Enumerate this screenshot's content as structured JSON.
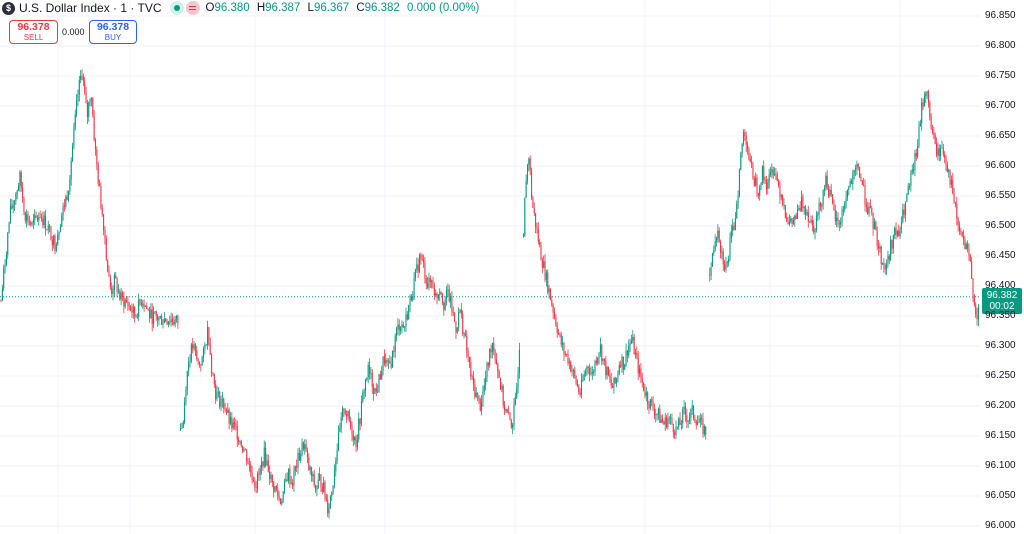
{
  "header": {
    "symbol_icon": "$",
    "symbol_title": "U.S. Dollar Index · 1 · TVC",
    "ohlc": {
      "o_label": "O",
      "o_value": "96.380",
      "h_label": "H",
      "h_value": "96.387",
      "l_label": "L",
      "l_value": "96.367",
      "c_label": "C",
      "c_value": "96.382",
      "change": "0.000 (0.00%)"
    }
  },
  "trade": {
    "sell_price": "96.378",
    "sell_label": "SELL",
    "spread": "0.000",
    "buy_price": "96.378",
    "buy_label": "BUY"
  },
  "last_price": {
    "value": "96.382",
    "countdown": "00:02",
    "number": 96.382
  },
  "colors": {
    "up": "#089981",
    "down": "#f23645",
    "grid": "#f0f3fa",
    "price_line": "#089981"
  },
  "chart_data": {
    "type": "candlestick",
    "y_ticks": [
      "96.850",
      "96.800",
      "96.750",
      "96.700",
      "96.650",
      "96.600",
      "96.550",
      "96.500",
      "96.450",
      "96.400",
      "96.350",
      "96.300",
      "96.250",
      "96.200",
      "96.150",
      "96.100",
      "96.050",
      "96.000"
    ],
    "ylim": [
      96.0,
      96.86
    ],
    "grid": true,
    "price_path": [
      [
        0,
        96.36
      ],
      [
        5,
        96.44
      ],
      [
        10,
        96.52
      ],
      [
        15,
        96.55
      ],
      [
        20,
        96.58
      ],
      [
        25,
        96.52
      ],
      [
        32,
        96.5
      ],
      [
        40,
        96.52
      ],
      [
        47,
        96.5
      ],
      [
        55,
        96.47
      ],
      [
        62,
        96.52
      ],
      [
        68,
        96.56
      ],
      [
        73,
        96.64
      ],
      [
        78,
        96.72
      ],
      [
        82,
        96.76
      ],
      [
        87,
        96.68
      ],
      [
        91,
        96.73
      ],
      [
        95,
        96.63
      ],
      [
        100,
        96.55
      ],
      [
        104,
        96.5
      ],
      [
        108,
        96.42
      ],
      [
        111,
        96.39
      ],
      [
        115,
        96.41
      ],
      [
        120,
        96.38
      ],
      [
        128,
        96.37
      ],
      [
        135,
        96.35
      ],
      [
        142,
        96.38
      ],
      [
        150,
        96.35
      ],
      [
        160,
        96.345
      ],
      [
        170,
        96.345
      ],
      [
        178,
        96.34
      ],
      [
        180,
        96.155
      ],
      [
        183,
        96.17
      ],
      [
        186,
        96.24
      ],
      [
        189,
        96.28
      ],
      [
        193,
        96.3
      ],
      [
        198,
        96.27
      ],
      [
        203,
        96.28
      ],
      [
        208,
        96.33
      ],
      [
        212,
        96.26
      ],
      [
        216,
        96.22
      ],
      [
        220,
        96.21
      ],
      [
        225,
        96.2
      ],
      [
        230,
        96.17
      ],
      [
        236,
        96.16
      ],
      [
        241,
        96.14
      ],
      [
        246,
        96.12
      ],
      [
        251,
        96.09
      ],
      [
        256,
        96.07
      ],
      [
        260,
        96.09
      ],
      [
        264,
        96.12
      ],
      [
        268,
        96.1
      ],
      [
        272,
        96.07
      ],
      [
        276,
        96.06
      ],
      [
        280,
        96.04
      ],
      [
        284,
        96.06
      ],
      [
        288,
        96.09
      ],
      [
        292,
        96.07
      ],
      [
        296,
        96.1
      ],
      [
        300,
        96.12
      ],
      [
        304,
        96.14
      ],
      [
        308,
        96.1
      ],
      [
        312,
        96.08
      ],
      [
        316,
        96.06
      ],
      [
        320,
        96.08
      ],
      [
        324,
        96.06
      ],
      [
        328,
        96.03
      ],
      [
        332,
        96.06
      ],
      [
        336,
        96.12
      ],
      [
        340,
        96.16
      ],
      [
        344,
        96.2
      ],
      [
        348,
        96.18
      ],
      [
        352,
        96.16
      ],
      [
        356,
        96.14
      ],
      [
        360,
        96.18
      ],
      [
        364,
        96.23
      ],
      [
        368,
        96.26
      ],
      [
        372,
        96.24
      ],
      [
        376,
        96.22
      ],
      [
        380,
        96.25
      ],
      [
        384,
        96.28
      ],
      [
        388,
        96.26
      ],
      [
        392,
        96.28
      ],
      [
        396,
        96.32
      ],
      [
        400,
        96.34
      ],
      [
        404,
        96.33
      ],
      [
        408,
        96.36
      ],
      [
        412,
        96.39
      ],
      [
        416,
        96.42
      ],
      [
        420,
        96.45
      ],
      [
        424,
        96.43
      ],
      [
        428,
        96.4
      ],
      [
        432,
        96.41
      ],
      [
        436,
        96.38
      ],
      [
        440,
        96.4
      ],
      [
        444,
        96.37
      ],
      [
        448,
        96.39
      ],
      [
        452,
        96.36
      ],
      [
        456,
        96.33
      ],
      [
        460,
        96.36
      ],
      [
        464,
        96.32
      ],
      [
        468,
        96.28
      ],
      [
        472,
        96.24
      ],
      [
        476,
        96.22
      ],
      [
        480,
        96.2
      ],
      [
        484,
        96.23
      ],
      [
        488,
        96.27
      ],
      [
        492,
        96.31
      ],
      [
        496,
        96.28
      ],
      [
        500,
        96.24
      ],
      [
        504,
        96.2
      ],
      [
        508,
        96.18
      ],
      [
        512,
        96.17
      ],
      [
        516,
        96.21
      ],
      [
        520,
        96.32
      ],
      [
        523,
        96.48
      ],
      [
        526,
        96.58
      ],
      [
        529,
        96.62
      ],
      [
        532,
        96.54
      ],
      [
        536,
        96.5
      ],
      [
        540,
        96.46
      ],
      [
        544,
        96.43
      ],
      [
        548,
        96.4
      ],
      [
        552,
        96.37
      ],
      [
        556,
        96.34
      ],
      [
        560,
        96.31
      ],
      [
        564,
        96.29
      ],
      [
        568,
        96.28
      ],
      [
        572,
        96.26
      ],
      [
        576,
        96.24
      ],
      [
        580,
        96.22
      ],
      [
        584,
        96.25
      ],
      [
        588,
        96.27
      ],
      [
        592,
        96.25
      ],
      [
        596,
        96.28
      ],
      [
        600,
        96.3
      ],
      [
        604,
        96.27
      ],
      [
        608,
        96.25
      ],
      [
        612,
        96.23
      ],
      [
        616,
        96.24
      ],
      [
        620,
        96.28
      ],
      [
        624,
        96.27
      ],
      [
        628,
        96.3
      ],
      [
        632,
        96.31
      ],
      [
        636,
        96.28
      ],
      [
        640,
        96.25
      ],
      [
        644,
        96.23
      ],
      [
        648,
        96.21
      ],
      [
        652,
        96.2
      ],
      [
        656,
        96.19
      ],
      [
        660,
        96.18
      ],
      [
        664,
        96.17
      ],
      [
        668,
        96.18
      ],
      [
        672,
        96.17
      ],
      [
        676,
        96.16
      ],
      [
        680,
        96.17
      ],
      [
        684,
        96.19
      ],
      [
        688,
        96.18
      ],
      [
        692,
        96.19
      ],
      [
        696,
        96.18
      ],
      [
        700,
        96.17
      ],
      [
        704,
        96.16
      ],
      [
        707,
        96.155
      ],
      [
        709,
        96.42
      ],
      [
        712,
        96.44
      ],
      [
        715,
        96.48
      ],
      [
        718,
        96.5
      ],
      [
        721,
        96.46
      ],
      [
        724,
        96.44
      ],
      [
        727,
        96.43
      ],
      [
        730,
        96.47
      ],
      [
        734,
        96.5
      ],
      [
        738,
        96.56
      ],
      [
        741,
        96.62
      ],
      [
        744,
        96.66
      ],
      [
        747,
        96.64
      ],
      [
        750,
        96.6
      ],
      [
        754,
        96.58
      ],
      [
        758,
        96.56
      ],
      [
        762,
        96.59
      ],
      [
        766,
        96.57
      ],
      [
        770,
        96.58
      ],
      [
        774,
        96.6
      ],
      [
        778,
        96.57
      ],
      [
        782,
        96.55
      ],
      [
        786,
        96.52
      ],
      [
        790,
        96.5
      ],
      [
        794,
        96.51
      ],
      [
        798,
        96.52
      ],
      [
        802,
        96.54
      ],
      [
        806,
        96.53
      ],
      [
        810,
        96.51
      ],
      [
        814,
        96.5
      ],
      [
        818,
        96.52
      ],
      [
        822,
        96.55
      ],
      [
        826,
        96.58
      ],
      [
        830,
        96.55
      ],
      [
        834,
        96.52
      ],
      [
        838,
        96.5
      ],
      [
        842,
        96.52
      ],
      [
        846,
        96.55
      ],
      [
        850,
        96.57
      ],
      [
        854,
        96.58
      ],
      [
        858,
        96.6
      ],
      [
        862,
        96.57
      ],
      [
        866,
        96.54
      ],
      [
        870,
        96.52
      ],
      [
        874,
        96.5
      ],
      [
        878,
        96.47
      ],
      [
        882,
        96.44
      ],
      [
        886,
        96.43
      ],
      [
        890,
        96.46
      ],
      [
        894,
        96.49
      ],
      [
        898,
        96.48
      ],
      [
        902,
        96.51
      ],
      [
        906,
        96.54
      ],
      [
        910,
        96.57
      ],
      [
        914,
        96.6
      ],
      [
        918,
        96.64
      ],
      [
        922,
        96.7
      ],
      [
        926,
        96.73
      ],
      [
        930,
        96.68
      ],
      [
        934,
        96.64
      ],
      [
        938,
        96.62
      ],
      [
        942,
        96.63
      ],
      [
        946,
        96.61
      ],
      [
        950,
        96.58
      ],
      [
        954,
        96.54
      ],
      [
        958,
        96.5
      ],
      [
        962,
        96.48
      ],
      [
        966,
        96.46
      ],
      [
        970,
        96.44
      ],
      [
        974,
        96.38
      ],
      [
        977,
        96.34
      ],
      [
        980,
        96.382
      ]
    ]
  }
}
